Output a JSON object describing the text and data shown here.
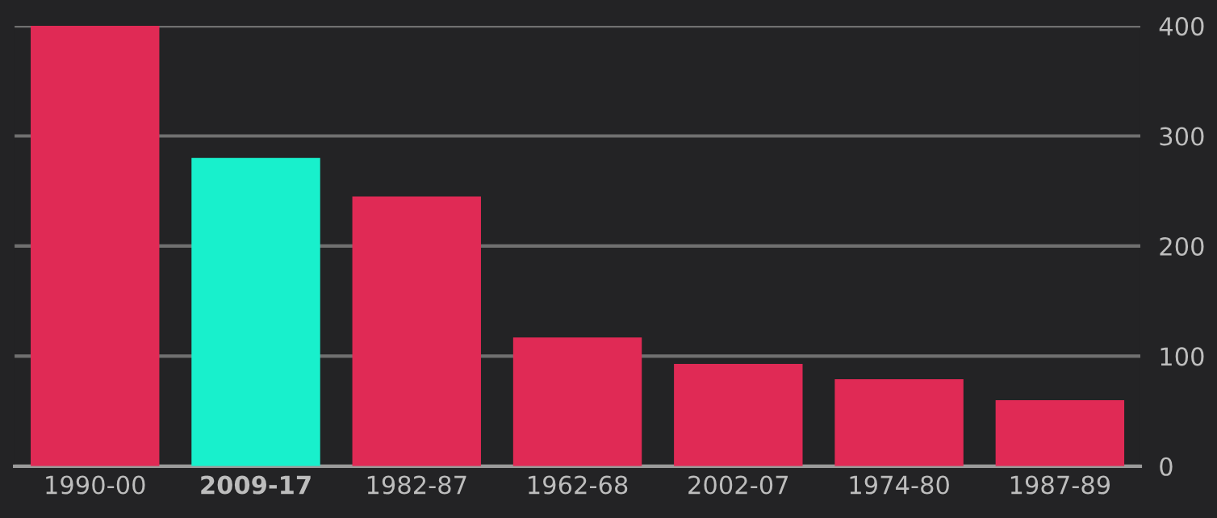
{
  "chart_data": {
    "type": "bar",
    "categories": [
      "1990-00",
      "2009-17",
      "1982-87",
      "1962-68",
      "2002-07",
      "1974-80",
      "1987-89"
    ],
    "values": [
      400,
      280,
      245,
      117,
      93,
      79,
      60
    ],
    "colors": [
      "#e02a55",
      "#18f0cc",
      "#e02a55",
      "#e02a55",
      "#e02a55",
      "#e02a55",
      "#e02a55"
    ],
    "ylim": [
      0,
      400
    ],
    "yticks": [
      0,
      100,
      200,
      300,
      400
    ],
    "grid": "y",
    "legend": false
  }
}
